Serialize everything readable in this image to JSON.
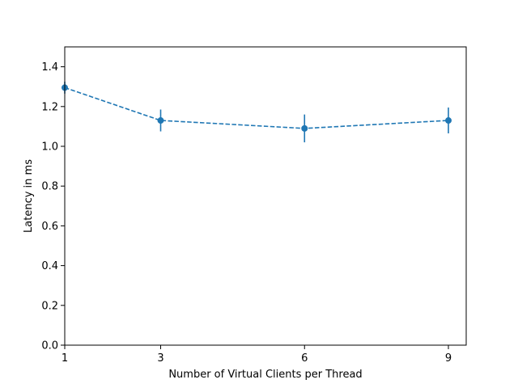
{
  "chart_data": {
    "type": "line",
    "title": "",
    "xlabel": "Number of Virtual Clients per Thread",
    "ylabel": "Latency in ms",
    "x": [
      1,
      3,
      6,
      9
    ],
    "xticks": [
      "1",
      "3",
      "6",
      "9"
    ],
    "yticks": [
      "0.0",
      "0.2",
      "0.4",
      "0.6",
      "0.8",
      "1.0",
      "1.2",
      "1.4"
    ],
    "ylim": [
      0.0,
      1.5
    ],
    "series": [
      {
        "values": [
          1.295,
          1.13,
          1.09,
          1.13
        ],
        "error": [
          0.03,
          0.055,
          0.07,
          0.065
        ],
        "color": "#1f77b4",
        "linestyle": "dashed",
        "marker": "circle"
      }
    ],
    "grid": false,
    "legend": "none"
  }
}
